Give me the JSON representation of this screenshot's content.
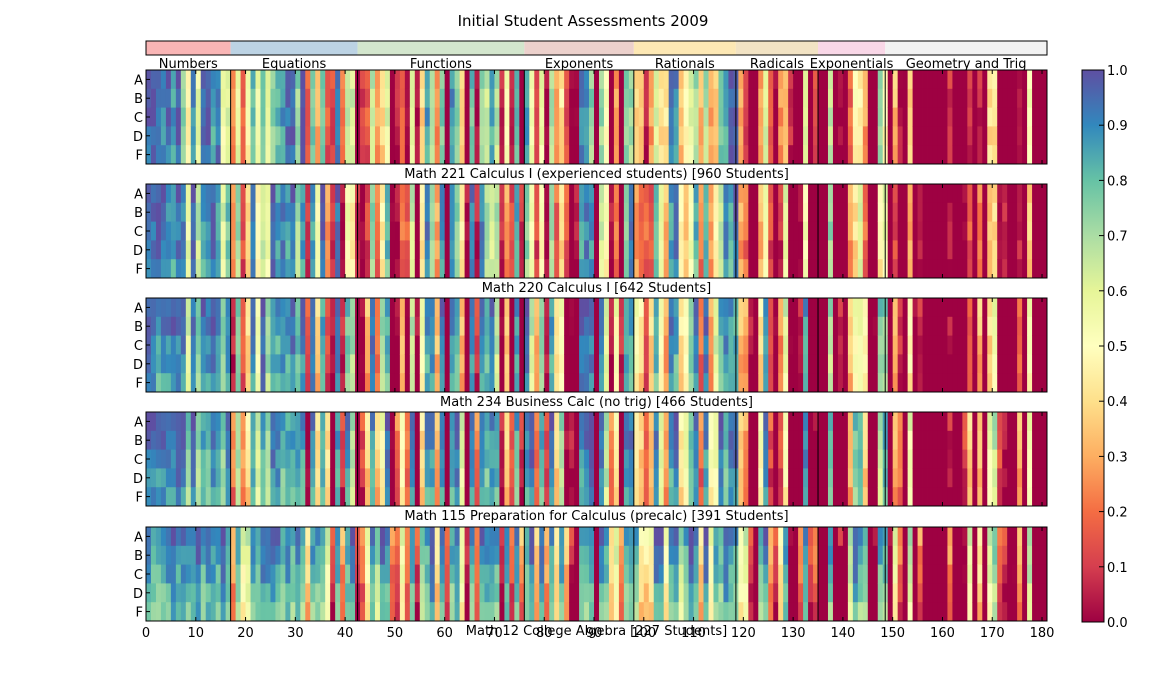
{
  "chart_data": {
    "type": "heatmap",
    "title": "Initial Student Assessments 2009",
    "x_range": [
      0,
      181
    ],
    "x_ticks": [
      0,
      10,
      20,
      30,
      40,
      50,
      60,
      70,
      80,
      90,
      100,
      110,
      120,
      130,
      140,
      150,
      160,
      170,
      180
    ],
    "row_labels": [
      "A",
      "B",
      "C",
      "D",
      "F"
    ],
    "colorbar": {
      "range": [
        0.0,
        1.0
      ],
      "ticks": [
        "0.0",
        "0.1",
        "0.2",
        "0.3",
        "0.4",
        "0.5",
        "0.6",
        "0.7",
        "0.8",
        "0.9",
        "1.0"
      ],
      "colormap": "Spectral"
    },
    "categories": [
      {
        "name": "Numbers",
        "start": 0,
        "end": 17,
        "color": "#f9b5b5"
      },
      {
        "name": "Equations",
        "start": 17,
        "end": 42.5,
        "color": "#bcd3e4"
      },
      {
        "name": "Functions",
        "start": 42.5,
        "end": 76,
        "color": "#d3e6cd"
      },
      {
        "name": "Exponents",
        "start": 76,
        "end": 98,
        "color": "#ecd1cc"
      },
      {
        "name": "Rationals",
        "start": 98,
        "end": 118.5,
        "color": "#fde8b4"
      },
      {
        "name": "Radicals",
        "start": 118.5,
        "end": 135,
        "color": "#f2e3c4"
      },
      {
        "name": "Exponentials",
        "start": 135,
        "end": 148.5,
        "color": "#f9d7e7"
      },
      {
        "name": "Geometry and Trig",
        "start": 148.5,
        "end": 181,
        "color": "#f2f2f2"
      }
    ],
    "panels": [
      {
        "label": "Math 221 Calculus I (experienced students) [960 Students]",
        "difficulty": 0.15,
        "seed": 11
      },
      {
        "label": "Math 220 Calculus I [642 Students]",
        "difficulty": 0.2,
        "seed": 23
      },
      {
        "label": "Math 234 Business Calc (no trig) [466 Students]",
        "difficulty": 0.4,
        "seed": 37
      },
      {
        "label": "Math 115 Preparation for Calculus (precalc) [391 Students]",
        "difficulty": 0.5,
        "seed": 53
      },
      {
        "label": "Math 12 College Algebra [227 Students]",
        "difficulty": 0.78,
        "seed": 71
      }
    ]
  }
}
